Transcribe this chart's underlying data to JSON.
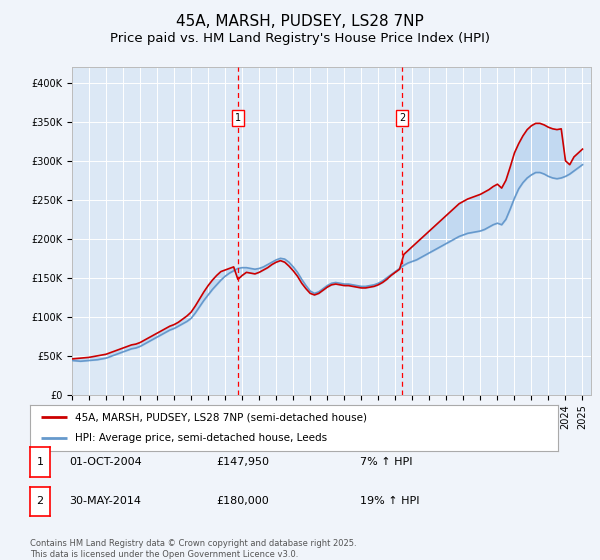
{
  "title": "45A, MARSH, PUDSEY, LS28 7NP",
  "subtitle": "Price paid vs. HM Land Registry's House Price Index (HPI)",
  "title_fontsize": 11,
  "subtitle_fontsize": 9.5,
  "background_color": "#f0f4fa",
  "plot_bg_color": "#dce8f5",
  "yticks": [
    0,
    50000,
    100000,
    150000,
    200000,
    250000,
    300000,
    350000,
    400000
  ],
  "ylim": [
    0,
    420000
  ],
  "xlim_start": 1995.0,
  "xlim_end": 2025.5,
  "vline1_x": 2004.75,
  "vline2_x": 2014.4,
  "legend_label1": "45A, MARSH, PUDSEY, LS28 7NP (semi-detached house)",
  "legend_label2": "HPI: Average price, semi-detached house, Leeds",
  "line1_color": "#cc0000",
  "line2_color": "#6699cc",
  "fill_color": "#aaccee",
  "fill_alpha": 0.5,
  "annotation1_num": "1",
  "annotation1_date": "01-OCT-2004",
  "annotation1_price": "£147,950",
  "annotation1_hpi": "7% ↑ HPI",
  "annotation2_num": "2",
  "annotation2_date": "30-MAY-2014",
  "annotation2_price": "£180,000",
  "annotation2_hpi": "19% ↑ HPI",
  "footer": "Contains HM Land Registry data © Crown copyright and database right 2025.\nThis data is licensed under the Open Government Licence v3.0.",
  "hpi_data_x": [
    1995.0,
    1995.25,
    1995.5,
    1995.75,
    1996.0,
    1996.25,
    1996.5,
    1996.75,
    1997.0,
    1997.25,
    1997.5,
    1997.75,
    1998.0,
    1998.25,
    1998.5,
    1998.75,
    1999.0,
    1999.25,
    1999.5,
    1999.75,
    2000.0,
    2000.25,
    2000.5,
    2000.75,
    2001.0,
    2001.25,
    2001.5,
    2001.75,
    2002.0,
    2002.25,
    2002.5,
    2002.75,
    2003.0,
    2003.25,
    2003.5,
    2003.75,
    2004.0,
    2004.25,
    2004.5,
    2004.75,
    2005.0,
    2005.25,
    2005.5,
    2005.75,
    2006.0,
    2006.25,
    2006.5,
    2006.75,
    2007.0,
    2007.25,
    2007.5,
    2007.75,
    2008.0,
    2008.25,
    2008.5,
    2008.75,
    2009.0,
    2009.25,
    2009.5,
    2009.75,
    2010.0,
    2010.25,
    2010.5,
    2010.75,
    2011.0,
    2011.25,
    2011.5,
    2011.75,
    2012.0,
    2012.25,
    2012.5,
    2012.75,
    2013.0,
    2013.25,
    2013.5,
    2013.75,
    2014.0,
    2014.25,
    2014.5,
    2014.75,
    2015.0,
    2015.25,
    2015.5,
    2015.75,
    2016.0,
    2016.25,
    2016.5,
    2016.75,
    2017.0,
    2017.25,
    2017.5,
    2017.75,
    2018.0,
    2018.25,
    2018.5,
    2018.75,
    2019.0,
    2019.25,
    2019.5,
    2019.75,
    2020.0,
    2020.25,
    2020.5,
    2020.75,
    2021.0,
    2021.25,
    2021.5,
    2021.75,
    2022.0,
    2022.25,
    2022.5,
    2022.75,
    2023.0,
    2023.25,
    2023.5,
    2023.75,
    2024.0,
    2024.25,
    2024.5,
    2024.75,
    2025.0
  ],
  "hpi_data_y": [
    44000,
    43500,
    43000,
    43500,
    44000,
    44500,
    45000,
    46000,
    47000,
    49000,
    51000,
    53000,
    55000,
    57000,
    59000,
    60000,
    62000,
    65000,
    68000,
    71000,
    74000,
    77000,
    80000,
    83000,
    85000,
    88000,
    91000,
    94000,
    98000,
    105000,
    113000,
    121000,
    128000,
    135000,
    141000,
    147000,
    152000,
    156000,
    159000,
    162000,
    163000,
    163000,
    162000,
    161000,
    162000,
    164000,
    167000,
    170000,
    173000,
    175000,
    174000,
    170000,
    164000,
    157000,
    148000,
    140000,
    133000,
    130000,
    132000,
    136000,
    140000,
    143000,
    144000,
    143000,
    142000,
    142000,
    141000,
    140000,
    139000,
    139000,
    140000,
    141000,
    143000,
    146000,
    150000,
    154000,
    158000,
    162000,
    166000,
    169000,
    171000,
    173000,
    176000,
    179000,
    182000,
    185000,
    188000,
    191000,
    194000,
    197000,
    200000,
    203000,
    205000,
    207000,
    208000,
    209000,
    210000,
    212000,
    215000,
    218000,
    220000,
    218000,
    225000,
    238000,
    252000,
    264000,
    272000,
    278000,
    282000,
    285000,
    285000,
    283000,
    280000,
    278000,
    277000,
    278000,
    280000,
    283000,
    287000,
    291000,
    295000
  ],
  "property_data_x": [
    1995.0,
    1995.25,
    1995.5,
    1995.75,
    1996.0,
    1996.25,
    1996.5,
    1996.75,
    1997.0,
    1997.25,
    1997.5,
    1997.75,
    1998.0,
    1998.25,
    1998.5,
    1998.75,
    1999.0,
    1999.25,
    1999.5,
    1999.75,
    2000.0,
    2000.25,
    2000.5,
    2000.75,
    2001.0,
    2001.25,
    2001.5,
    2001.75,
    2002.0,
    2002.25,
    2002.5,
    2002.75,
    2003.0,
    2003.25,
    2003.5,
    2003.75,
    2004.0,
    2004.25,
    2004.5,
    2004.75,
    2005.0,
    2005.25,
    2005.5,
    2005.75,
    2006.0,
    2006.25,
    2006.5,
    2006.75,
    2007.0,
    2007.25,
    2007.5,
    2007.75,
    2008.0,
    2008.25,
    2008.5,
    2008.75,
    2009.0,
    2009.25,
    2009.5,
    2009.75,
    2010.0,
    2010.25,
    2010.5,
    2010.75,
    2011.0,
    2011.25,
    2011.5,
    2011.75,
    2012.0,
    2012.25,
    2012.5,
    2012.75,
    2013.0,
    2013.25,
    2013.5,
    2013.75,
    2014.0,
    2014.25,
    2014.5,
    2014.75,
    2015.0,
    2015.25,
    2015.5,
    2015.75,
    2016.0,
    2016.25,
    2016.5,
    2016.75,
    2017.0,
    2017.25,
    2017.5,
    2017.75,
    2018.0,
    2018.25,
    2018.5,
    2018.75,
    2019.0,
    2019.25,
    2019.5,
    2019.75,
    2020.0,
    2020.25,
    2020.5,
    2020.75,
    2021.0,
    2021.25,
    2021.5,
    2021.75,
    2022.0,
    2022.25,
    2022.5,
    2022.75,
    2023.0,
    2023.25,
    2023.5,
    2023.75,
    2024.0,
    2024.25,
    2024.5,
    2024.75,
    2025.0
  ],
  "property_data_y": [
    46000,
    46500,
    47000,
    47500,
    48000,
    49000,
    50000,
    51000,
    52000,
    54000,
    56000,
    58000,
    60000,
    62000,
    64000,
    65000,
    67000,
    70000,
    73000,
    76000,
    79000,
    82000,
    85000,
    88000,
    90000,
    93000,
    97000,
    101000,
    106000,
    114000,
    123000,
    132000,
    140000,
    147000,
    153000,
    158000,
    160000,
    162000,
    164000,
    147950,
    153000,
    157000,
    156000,
    155000,
    157000,
    160000,
    163000,
    167000,
    170000,
    172000,
    170000,
    165000,
    159000,
    152000,
    143000,
    136000,
    130000,
    128000,
    130000,
    134000,
    138000,
    141000,
    142000,
    141000,
    140000,
    140000,
    139000,
    138000,
    137000,
    137000,
    138000,
    139000,
    141000,
    144000,
    148000,
    153000,
    157000,
    161000,
    180000,
    185000,
    190000,
    195000,
    200000,
    205000,
    210000,
    215000,
    220000,
    225000,
    230000,
    235000,
    240000,
    245000,
    248000,
    251000,
    253000,
    255000,
    257000,
    260000,
    263000,
    267000,
    270000,
    265000,
    275000,
    292000,
    310000,
    322000,
    332000,
    340000,
    345000,
    348000,
    348000,
    346000,
    343000,
    341000,
    340000,
    341000,
    300000,
    295000,
    305000,
    310000,
    315000
  ]
}
